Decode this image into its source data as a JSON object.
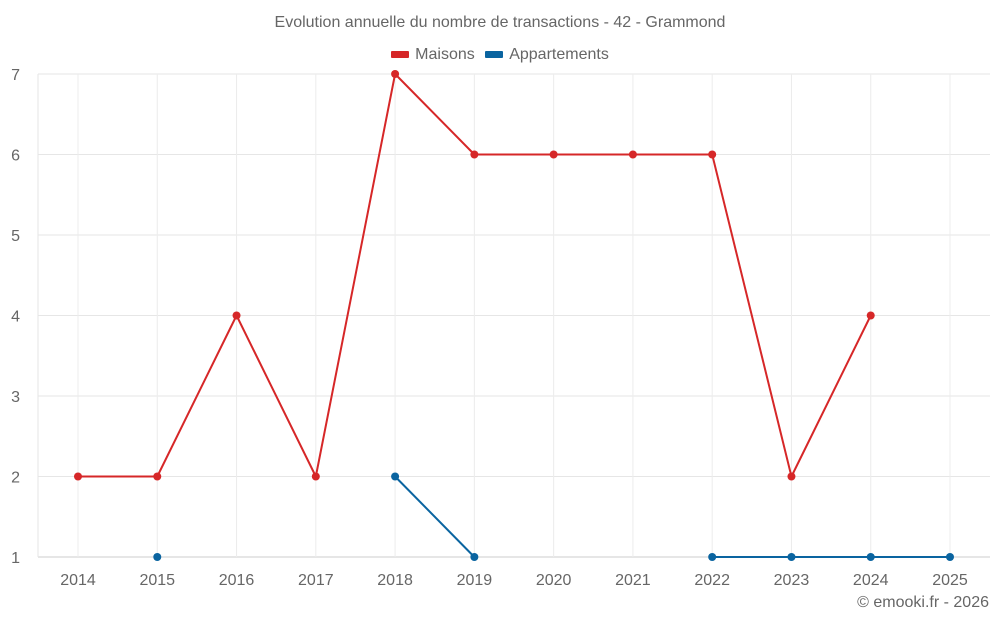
{
  "chart_data": {
    "type": "line",
    "title": "Evolution annuelle du nombre de transactions - 42 - Grammond",
    "xlabel": "",
    "ylabel": "",
    "categories": [
      "2014",
      "2015",
      "2016",
      "2017",
      "2018",
      "2019",
      "2020",
      "2021",
      "2022",
      "2023",
      "2024",
      "2025"
    ],
    "series": [
      {
        "name": "Maisons",
        "color": "#d62728",
        "values": [
          2,
          2,
          4,
          2,
          7,
          6,
          6,
          6,
          6,
          2,
          4,
          null
        ]
      },
      {
        "name": "Appartements",
        "color": "#0a64a0",
        "values": [
          null,
          1,
          null,
          null,
          2,
          1,
          null,
          null,
          1,
          1,
          1,
          1
        ]
      }
    ],
    "yticks": [
      1,
      2,
      3,
      4,
      5,
      6,
      7
    ],
    "ylim": [
      1,
      7
    ],
    "grid": true,
    "legend_position": "top"
  },
  "legend": {
    "items": [
      {
        "label": "Maisons",
        "color": "#d62728"
      },
      {
        "label": "Appartements",
        "color": "#0a64a0"
      }
    ]
  },
  "credit": "© emooki.fr - 2026"
}
